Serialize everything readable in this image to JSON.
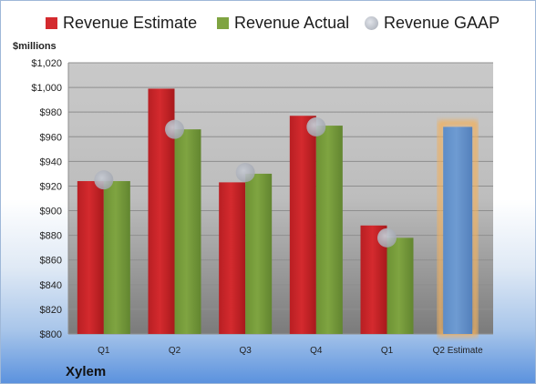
{
  "legend": {
    "estimate_label": "Revenue Estimate",
    "actual_label": "Revenue Actual",
    "gaap_label": "Revenue GAAP"
  },
  "unit_label": "$millions",
  "company": "Xylem",
  "colors": {
    "estimate": "#d42a2e",
    "actual": "#7fa441",
    "gaap": "#a4a8b2",
    "projected": "#6e9bd2",
    "projected_glow": "#f0b160",
    "plot_bg_top": "#c9c9c9",
    "plot_bg_bottom": "#7b7b7b"
  },
  "chart_data": {
    "type": "bar",
    "categories": [
      "Q1",
      "Q2",
      "Q3",
      "Q4",
      "Q1",
      "Q2 Estimate"
    ],
    "ylim": [
      800,
      1020
    ],
    "ytick_step": 20,
    "ytick_format": "${v}",
    "series": [
      {
        "name": "Revenue Estimate",
        "values": [
          924,
          999,
          923,
          977,
          888,
          null
        ]
      },
      {
        "name": "Revenue Actual",
        "values": [
          924,
          966,
          930,
          969,
          878,
          null
        ]
      },
      {
        "name": "Revenue GAAP",
        "values": [
          925,
          966,
          931,
          968,
          878,
          null
        ]
      }
    ],
    "projected": {
      "category": "Q2 Estimate",
      "value": 968
    }
  }
}
